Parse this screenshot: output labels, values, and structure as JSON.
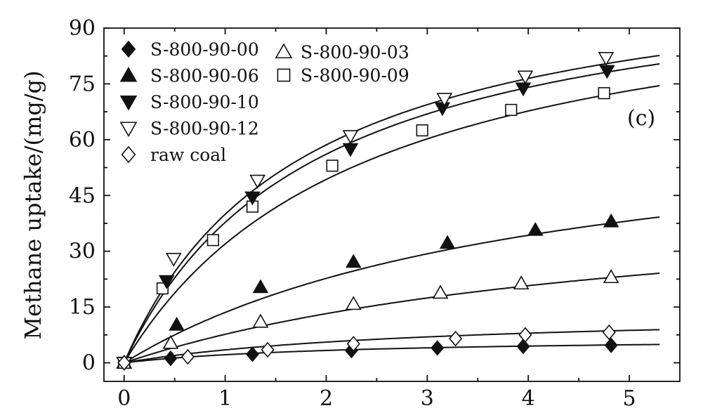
{
  "chart_data": {
    "type": "scatter",
    "title": "",
    "xlabel": "",
    "ylabel": "Methane uptake/(mg/g)",
    "xlim": [
      -0.2,
      5.5
    ],
    "ylim": [
      -5,
      90
    ],
    "x_ticks": [
      0,
      1,
      2,
      3,
      4,
      5
    ],
    "y_ticks": [
      0,
      15,
      30,
      45,
      60,
      75,
      90
    ],
    "grid": false,
    "legend_position": "top-left",
    "annotation": "(c)",
    "series": [
      {
        "name": "S-800-90-00",
        "marker": "diamond-filled",
        "x": [
          0,
          0.46,
          1.27,
          2.25,
          3.1,
          3.95,
          4.82
        ],
        "y": [
          0,
          1.2,
          2.3,
          3.3,
          4.0,
          4.4,
          4.7
        ],
        "fit": {
          "qmax": 7.0,
          "b": 0.45
        }
      },
      {
        "name": "S-800-90-03",
        "marker": "triangle-up-open",
        "x": [
          0,
          0.46,
          1.35,
          2.27,
          3.13,
          3.93,
          4.82
        ],
        "y": [
          0,
          5.3,
          11.0,
          15.8,
          18.8,
          21.3,
          23.0
        ],
        "fit": {
          "qmax": 48.0,
          "b": 0.19
        }
      },
      {
        "name": "S-800-90-06",
        "marker": "triangle-up-filled",
        "x": [
          0,
          0.52,
          1.35,
          2.27,
          3.2,
          4.07,
          4.82
        ],
        "y": [
          0,
          10.2,
          20.3,
          27.1,
          32.2,
          35.7,
          38.0
        ],
        "fit": {
          "qmax": 70.0,
          "b": 0.24
        }
      },
      {
        "name": "S-800-90-09",
        "marker": "square-open",
        "x": [
          0,
          0.38,
          0.88,
          1.27,
          2.06,
          2.95,
          3.83,
          4.75
        ],
        "y": [
          0,
          20.0,
          33.0,
          42.0,
          53.0,
          62.5,
          68.0,
          72.5
        ],
        "fit": {
          "qmax": 108.0,
          "b": 0.42
        }
      },
      {
        "name": "S-800-90-10",
        "marker": "triangle-down-filled",
        "x": [
          0,
          0.42,
          1.27,
          2.24,
          3.15,
          3.95,
          4.78
        ],
        "y": [
          0,
          22.0,
          44.5,
          57.5,
          68.5,
          73.8,
          78.5
        ],
        "fit": {
          "qmax": 109.0,
          "b": 0.53
        }
      },
      {
        "name": "S-800-90-12",
        "marker": "triangle-down-open",
        "x": [
          0,
          0.49,
          1.32,
          2.24,
          3.17,
          3.97,
          4.77
        ],
        "y": [
          0,
          28.0,
          49.0,
          61.0,
          71.0,
          77.0,
          82.0
        ],
        "fit": {
          "qmax": 110.0,
          "b": 0.57
        }
      },
      {
        "name": "raw coal",
        "marker": "diamond-open",
        "x": [
          0,
          0.63,
          1.42,
          2.27,
          3.28,
          3.97,
          4.8
        ],
        "y": [
          0,
          1.6,
          3.5,
          5.1,
          6.5,
          7.5,
          8.2
        ],
        "fit": {
          "qmax": 14.0,
          "b": 0.33
        }
      }
    ]
  }
}
